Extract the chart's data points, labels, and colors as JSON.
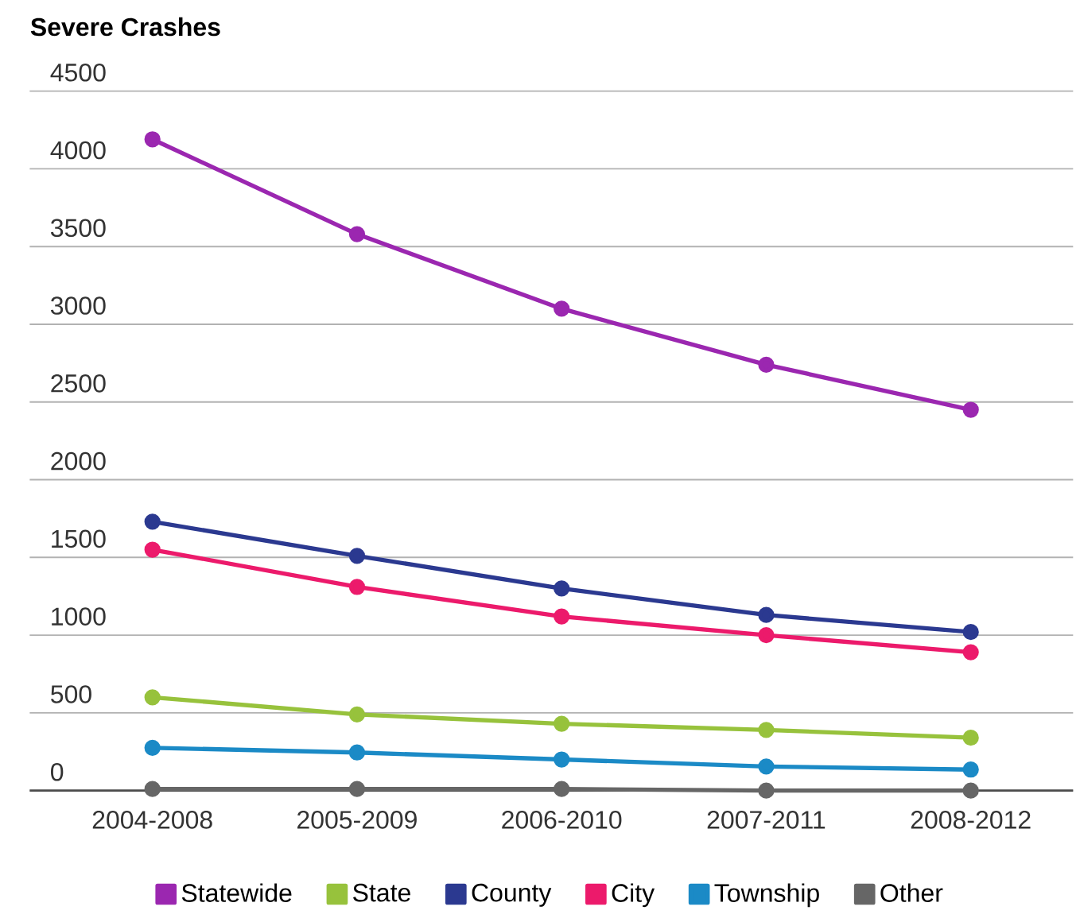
{
  "chart_data": {
    "type": "line",
    "title": "Severe Crashes",
    "categories": [
      "2004-2008",
      "2005-2009",
      "2006-2010",
      "2007-2011",
      "2008-2012"
    ],
    "series": [
      {
        "name": "Statewide",
        "color": "#9b27b0",
        "values": [
          4190,
          3580,
          3100,
          2740,
          2450
        ]
      },
      {
        "name": "State",
        "color": "#97c23c",
        "values": [
          600,
          490,
          430,
          390,
          340
        ]
      },
      {
        "name": "County",
        "color": "#2b3990",
        "values": [
          1730,
          1510,
          1300,
          1130,
          1020
        ]
      },
      {
        "name": "City",
        "color": "#ec1a6b",
        "values": [
          1550,
          1310,
          1120,
          1000,
          890
        ]
      },
      {
        "name": "Township",
        "color": "#1b8ac6",
        "values": [
          275,
          245,
          200,
          155,
          135
        ]
      },
      {
        "name": "Other",
        "color": "#666666",
        "values": [
          10,
          10,
          10,
          0,
          0
        ]
      }
    ],
    "ylim": [
      0,
      4500
    ],
    "yticks": [
      0,
      500,
      1000,
      1500,
      2000,
      2500,
      3000,
      3500,
      4000,
      4500
    ],
    "grid": "y",
    "legend": "bottom",
    "marker": "circle",
    "line_style": "solid"
  }
}
